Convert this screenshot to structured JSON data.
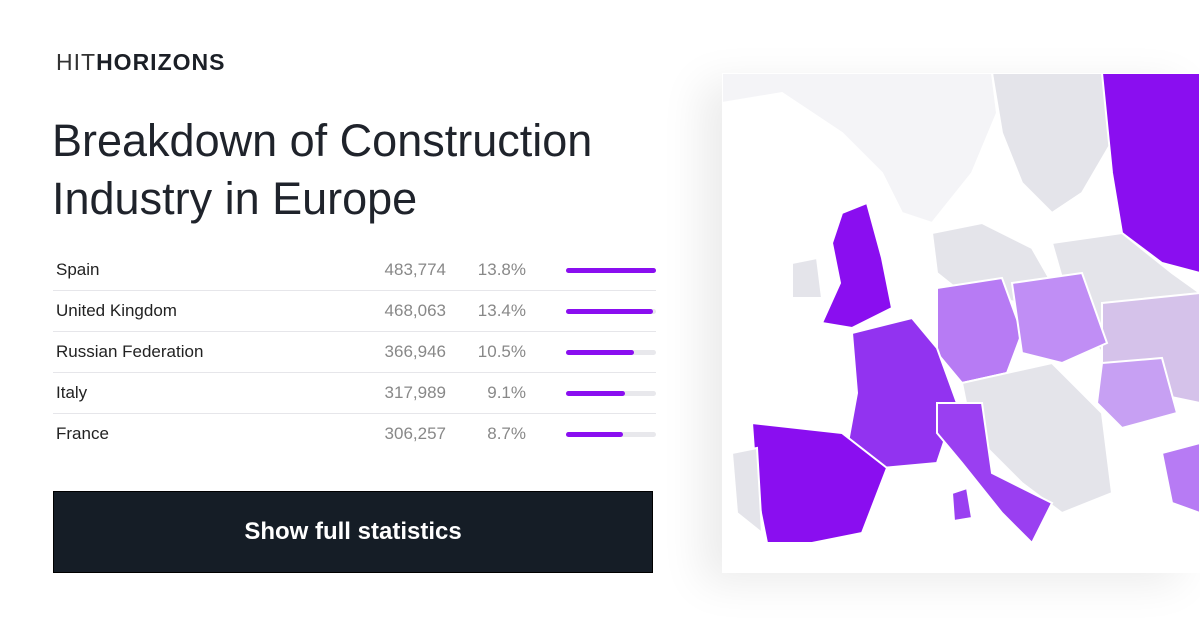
{
  "logo": {
    "light": "HIT",
    "bold": "HORIZONS"
  },
  "title": "Breakdown of Construction Industry in Europe",
  "table": {
    "rows": [
      {
        "country": "Spain",
        "value": "483,774",
        "share": 13.8,
        "share_label": "13.8%"
      },
      {
        "country": "United Kingdom",
        "value": "468,063",
        "share": 13.4,
        "share_label": "13.4%"
      },
      {
        "country": "Russian Federation",
        "value": "366,946",
        "share": 10.5,
        "share_label": "10.5%"
      },
      {
        "country": "Italy",
        "value": "317,989",
        "share": 9.1,
        "share_label": "9.1%"
      },
      {
        "country": "France",
        "value": "306,257",
        "share": 8.7,
        "share_label": "8.7%"
      }
    ]
  },
  "button": "Show full statistics"
}
